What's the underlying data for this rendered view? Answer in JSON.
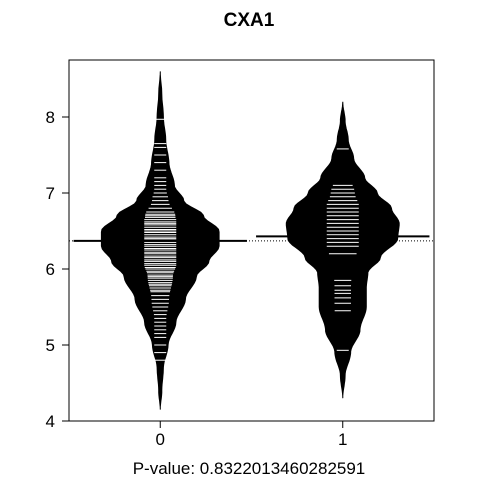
{
  "chart_data": {
    "type": "beanplot",
    "title": "CXA1",
    "subtitle": "P-value: 0.8322013460282591",
    "categories": [
      "0",
      "1"
    ],
    "ylim": [
      4,
      9
    ],
    "yticks": [
      4,
      5,
      6,
      7,
      8
    ],
    "overall_mean": 6.37,
    "colors": {
      "bean": "#000000",
      "beanline": "#ffffff",
      "axis": "#000000"
    },
    "series": [
      {
        "category": "0",
        "mean": 6.37,
        "min": 4.15,
        "max": 8.6,
        "density_profile": [
          {
            "y": 4.15,
            "w": 0.0
          },
          {
            "y": 4.4,
            "w": 0.02
          },
          {
            "y": 4.7,
            "w": 0.04
          },
          {
            "y": 5.0,
            "w": 0.1
          },
          {
            "y": 5.3,
            "w": 0.2
          },
          {
            "y": 5.6,
            "w": 0.32
          },
          {
            "y": 5.9,
            "w": 0.46
          },
          {
            "y": 6.1,
            "w": 0.62
          },
          {
            "y": 6.3,
            "w": 0.75
          },
          {
            "y": 6.5,
            "w": 0.75
          },
          {
            "y": 6.7,
            "w": 0.55
          },
          {
            "y": 6.9,
            "w": 0.3
          },
          {
            "y": 7.1,
            "w": 0.18
          },
          {
            "y": 7.4,
            "w": 0.11
          },
          {
            "y": 7.7,
            "w": 0.07
          },
          {
            "y": 8.0,
            "w": 0.04
          },
          {
            "y": 8.3,
            "w": 0.02
          },
          {
            "y": 8.6,
            "w": 0.0
          }
        ],
        "observations": [
          4.8,
          4.9,
          5.0,
          5.1,
          5.15,
          5.2,
          5.25,
          5.3,
          5.35,
          5.4,
          5.45,
          5.5,
          5.55,
          5.6,
          5.65,
          5.7,
          5.72,
          5.75,
          5.78,
          5.8,
          5.82,
          5.85,
          5.88,
          5.9,
          5.92,
          5.95,
          5.97,
          6.0,
          6.02,
          6.05,
          6.07,
          6.1,
          6.12,
          6.15,
          6.17,
          6.2,
          6.22,
          6.25,
          6.27,
          6.3,
          6.32,
          6.35,
          6.38,
          6.4,
          6.42,
          6.45,
          6.48,
          6.5,
          6.52,
          6.55,
          6.58,
          6.6,
          6.62,
          6.65,
          6.68,
          6.7,
          6.72,
          6.75,
          6.8,
          6.85,
          6.9,
          6.95,
          7.0,
          7.05,
          7.1,
          7.15,
          7.2,
          7.3,
          7.4,
          7.5,
          7.6,
          7.65,
          7.97
        ]
      },
      {
        "category": "1",
        "mean": 6.43,
        "min": 4.3,
        "max": 8.2,
        "density_profile": [
          {
            "y": 4.3,
            "w": 0.0
          },
          {
            "y": 4.6,
            "w": 0.03
          },
          {
            "y": 4.9,
            "w": 0.1
          },
          {
            "y": 5.2,
            "w": 0.22
          },
          {
            "y": 5.5,
            "w": 0.3
          },
          {
            "y": 5.75,
            "w": 0.3
          },
          {
            "y": 5.95,
            "w": 0.32
          },
          {
            "y": 6.15,
            "w": 0.48
          },
          {
            "y": 6.4,
            "w": 0.7
          },
          {
            "y": 6.6,
            "w": 0.72
          },
          {
            "y": 6.8,
            "w": 0.62
          },
          {
            "y": 7.0,
            "w": 0.44
          },
          {
            "y": 7.2,
            "w": 0.28
          },
          {
            "y": 7.45,
            "w": 0.14
          },
          {
            "y": 7.7,
            "w": 0.07
          },
          {
            "y": 7.95,
            "w": 0.03
          },
          {
            "y": 8.2,
            "w": 0.0
          }
        ],
        "observations": [
          4.93,
          5.45,
          5.55,
          5.62,
          5.68,
          5.72,
          5.78,
          5.85,
          6.2,
          6.3,
          6.35,
          6.4,
          6.45,
          6.5,
          6.55,
          6.6,
          6.65,
          6.7,
          6.75,
          6.8,
          6.85,
          6.9,
          6.95,
          7.0,
          7.05,
          7.1,
          7.58
        ]
      }
    ]
  }
}
